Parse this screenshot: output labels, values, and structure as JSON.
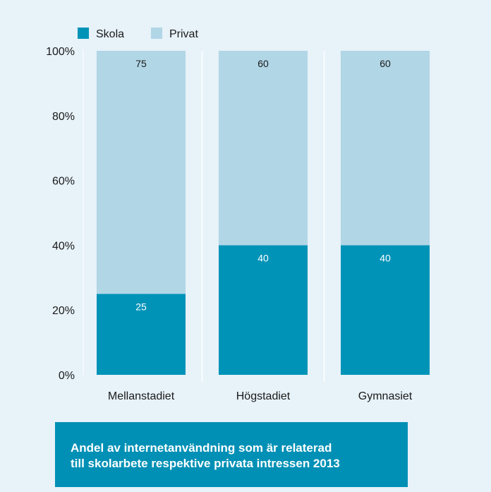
{
  "colors": {
    "background": "#e7f2f9",
    "skola": "#0093b8",
    "privat": "#b1d6e6",
    "caption_bg": "#0090b5",
    "axis_text": "#1a1a1a"
  },
  "caption": {
    "line1": "Andel av internetanvändning som är relaterad",
    "line2": "till skolarbete respektive privata intressen 2013"
  },
  "chart_data": {
    "type": "bar",
    "stacked": true,
    "categories": [
      "Mellanstadiet",
      "Högstadiet",
      "Gymnasiet"
    ],
    "series": [
      {
        "name": "Skola",
        "values": [
          25,
          40,
          40
        ],
        "color": "#0093b8"
      },
      {
        "name": "Privat",
        "values": [
          75,
          60,
          60
        ],
        "color": "#b1d6e6"
      }
    ],
    "ylim": [
      0,
      100
    ],
    "yticks": [
      "0%",
      "20%",
      "40%",
      "60%",
      "80%",
      "100%"
    ],
    "legend": "top-left",
    "grid": false
  }
}
